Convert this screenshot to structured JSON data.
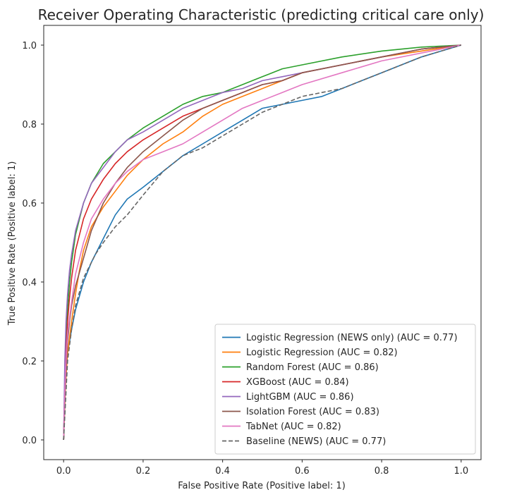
{
  "chart_data": {
    "type": "line",
    "title": "Receiver Operating Characteristic (predicting critical care only)",
    "xlabel": "False Positive Rate (Positive label: 1)",
    "ylabel": "True Positive Rate (Positive label: 1)",
    "xlim": [
      -0.05,
      1.05
    ],
    "ylim": [
      -0.05,
      1.05
    ],
    "xticks": [
      "0.0",
      "0.2",
      "0.4",
      "0.6",
      "0.8",
      "1.0"
    ],
    "yticks": [
      "0.0",
      "0.2",
      "0.4",
      "0.6",
      "0.8",
      "1.0"
    ],
    "grid": false,
    "legend_position": "lower-right",
    "series": [
      {
        "name": "Logistic Regression (NEWS only) (AUC = 0.77)",
        "color": "#1f77b4",
        "dash": "solid",
        "points": [
          [
            0,
            0
          ],
          [
            0.005,
            0.15
          ],
          [
            0.01,
            0.22
          ],
          [
            0.02,
            0.28
          ],
          [
            0.03,
            0.33
          ],
          [
            0.05,
            0.4
          ],
          [
            0.07,
            0.45
          ],
          [
            0.1,
            0.51
          ],
          [
            0.13,
            0.57
          ],
          [
            0.16,
            0.61
          ],
          [
            0.2,
            0.64
          ],
          [
            0.25,
            0.68
          ],
          [
            0.3,
            0.72
          ],
          [
            0.35,
            0.75
          ],
          [
            0.4,
            0.78
          ],
          [
            0.45,
            0.81
          ],
          [
            0.5,
            0.84
          ],
          [
            0.55,
            0.85
          ],
          [
            0.6,
            0.86
          ],
          [
            0.65,
            0.87
          ],
          [
            0.7,
            0.89
          ],
          [
            0.75,
            0.91
          ],
          [
            0.8,
            0.93
          ],
          [
            0.85,
            0.95
          ],
          [
            0.9,
            0.97
          ],
          [
            0.95,
            0.985
          ],
          [
            1,
            1
          ]
        ]
      },
      {
        "name": "Logistic Regression (AUC = 0.82)",
        "color": "#ff7f0e",
        "dash": "solid",
        "points": [
          [
            0,
            0
          ],
          [
            0.005,
            0.14
          ],
          [
            0.01,
            0.22
          ],
          [
            0.02,
            0.3
          ],
          [
            0.03,
            0.37
          ],
          [
            0.04,
            0.43
          ],
          [
            0.05,
            0.48
          ],
          [
            0.07,
            0.54
          ],
          [
            0.1,
            0.59
          ],
          [
            0.13,
            0.63
          ],
          [
            0.16,
            0.67
          ],
          [
            0.2,
            0.71
          ],
          [
            0.25,
            0.75
          ],
          [
            0.3,
            0.78
          ],
          [
            0.35,
            0.82
          ],
          [
            0.4,
            0.85
          ],
          [
            0.45,
            0.87
          ],
          [
            0.5,
            0.89
          ],
          [
            0.55,
            0.91
          ],
          [
            0.6,
            0.93
          ],
          [
            0.7,
            0.95
          ],
          [
            0.8,
            0.97
          ],
          [
            0.9,
            0.985
          ],
          [
            1,
            1
          ]
        ]
      },
      {
        "name": "Random Forest (AUC = 0.86)",
        "color": "#2ca02c",
        "dash": "solid",
        "points": [
          [
            0,
            0
          ],
          [
            0.003,
            0.15
          ],
          [
            0.006,
            0.25
          ],
          [
            0.01,
            0.33
          ],
          [
            0.015,
            0.4
          ],
          [
            0.02,
            0.45
          ],
          [
            0.03,
            0.52
          ],
          [
            0.05,
            0.6
          ],
          [
            0.07,
            0.65
          ],
          [
            0.1,
            0.7
          ],
          [
            0.13,
            0.73
          ],
          [
            0.16,
            0.76
          ],
          [
            0.2,
            0.79
          ],
          [
            0.25,
            0.82
          ],
          [
            0.3,
            0.85
          ],
          [
            0.35,
            0.87
          ],
          [
            0.4,
            0.88
          ],
          [
            0.45,
            0.9
          ],
          [
            0.5,
            0.92
          ],
          [
            0.55,
            0.94
          ],
          [
            0.6,
            0.95
          ],
          [
            0.7,
            0.97
          ],
          [
            0.8,
            0.985
          ],
          [
            0.9,
            0.995
          ],
          [
            1,
            1
          ]
        ]
      },
      {
        "name": "XGBoost (AUC = 0.84)",
        "color": "#d62728",
        "dash": "solid",
        "points": [
          [
            0,
            0
          ],
          [
            0.003,
            0.13
          ],
          [
            0.006,
            0.22
          ],
          [
            0.01,
            0.3
          ],
          [
            0.015,
            0.36
          ],
          [
            0.02,
            0.41
          ],
          [
            0.03,
            0.48
          ],
          [
            0.05,
            0.56
          ],
          [
            0.07,
            0.61
          ],
          [
            0.1,
            0.66
          ],
          [
            0.13,
            0.7
          ],
          [
            0.16,
            0.73
          ],
          [
            0.2,
            0.76
          ],
          [
            0.25,
            0.79
          ],
          [
            0.3,
            0.82
          ],
          [
            0.35,
            0.84
          ],
          [
            0.4,
            0.86
          ],
          [
            0.45,
            0.88
          ],
          [
            0.5,
            0.9
          ],
          [
            0.55,
            0.91
          ],
          [
            0.6,
            0.93
          ],
          [
            0.7,
            0.95
          ],
          [
            0.8,
            0.97
          ],
          [
            0.9,
            0.99
          ],
          [
            1,
            1
          ]
        ]
      },
      {
        "name": "LightGBM (AUC = 0.86)",
        "color": "#9467bd",
        "dash": "solid",
        "points": [
          [
            0,
            0
          ],
          [
            0.003,
            0.2
          ],
          [
            0.006,
            0.3
          ],
          [
            0.01,
            0.37
          ],
          [
            0.015,
            0.43
          ],
          [
            0.02,
            0.47
          ],
          [
            0.03,
            0.53
          ],
          [
            0.05,
            0.6
          ],
          [
            0.07,
            0.65
          ],
          [
            0.1,
            0.69
          ],
          [
            0.13,
            0.73
          ],
          [
            0.16,
            0.76
          ],
          [
            0.2,
            0.78
          ],
          [
            0.25,
            0.81
          ],
          [
            0.3,
            0.84
          ],
          [
            0.35,
            0.86
          ],
          [
            0.4,
            0.88
          ],
          [
            0.45,
            0.89
          ],
          [
            0.5,
            0.91
          ],
          [
            0.55,
            0.92
          ],
          [
            0.6,
            0.93
          ],
          [
            0.7,
            0.95
          ],
          [
            0.8,
            0.97
          ],
          [
            0.9,
            0.99
          ],
          [
            1,
            1
          ]
        ]
      },
      {
        "name": "Isolation Forest (AUC = 0.83)",
        "color": "#8c564b",
        "dash": "solid",
        "points": [
          [
            0,
            0
          ],
          [
            0.003,
            0.1
          ],
          [
            0.006,
            0.18
          ],
          [
            0.01,
            0.25
          ],
          [
            0.015,
            0.3
          ],
          [
            0.02,
            0.34
          ],
          [
            0.03,
            0.39
          ],
          [
            0.05,
            0.46
          ],
          [
            0.07,
            0.53
          ],
          [
            0.1,
            0.6
          ],
          [
            0.13,
            0.65
          ],
          [
            0.16,
            0.69
          ],
          [
            0.2,
            0.73
          ],
          [
            0.25,
            0.77
          ],
          [
            0.3,
            0.81
          ],
          [
            0.35,
            0.84
          ],
          [
            0.4,
            0.86
          ],
          [
            0.45,
            0.88
          ],
          [
            0.5,
            0.9
          ],
          [
            0.55,
            0.91
          ],
          [
            0.6,
            0.93
          ],
          [
            0.7,
            0.95
          ],
          [
            0.8,
            0.97
          ],
          [
            0.9,
            0.99
          ],
          [
            1,
            1
          ]
        ]
      },
      {
        "name": "TabNet (AUC = 0.82)",
        "color": "#e377c2",
        "dash": "solid",
        "points": [
          [
            0,
            0
          ],
          [
            0.003,
            0.12
          ],
          [
            0.006,
            0.2
          ],
          [
            0.01,
            0.27
          ],
          [
            0.02,
            0.35
          ],
          [
            0.03,
            0.42
          ],
          [
            0.05,
            0.5
          ],
          [
            0.07,
            0.56
          ],
          [
            0.1,
            0.61
          ],
          [
            0.13,
            0.65
          ],
          [
            0.16,
            0.68
          ],
          [
            0.2,
            0.71
          ],
          [
            0.25,
            0.73
          ],
          [
            0.3,
            0.75
          ],
          [
            0.35,
            0.78
          ],
          [
            0.4,
            0.81
          ],
          [
            0.45,
            0.84
          ],
          [
            0.5,
            0.86
          ],
          [
            0.55,
            0.88
          ],
          [
            0.6,
            0.9
          ],
          [
            0.7,
            0.93
          ],
          [
            0.8,
            0.96
          ],
          [
            0.9,
            0.98
          ],
          [
            1,
            1
          ]
        ]
      },
      {
        "name": "Baseline (NEWS) (AUC = 0.77)",
        "color": "#666666",
        "dash": "dashed",
        "points": [
          [
            0,
            0
          ],
          [
            0.01,
            0.2
          ],
          [
            0.02,
            0.28
          ],
          [
            0.03,
            0.34
          ],
          [
            0.05,
            0.41
          ],
          [
            0.08,
            0.47
          ],
          [
            0.1,
            0.5
          ],
          [
            0.13,
            0.54
          ],
          [
            0.16,
            0.57
          ],
          [
            0.2,
            0.62
          ],
          [
            0.25,
            0.68
          ],
          [
            0.3,
            0.72
          ],
          [
            0.35,
            0.74
          ],
          [
            0.4,
            0.77
          ],
          [
            0.45,
            0.8
          ],
          [
            0.5,
            0.83
          ],
          [
            0.55,
            0.85
          ],
          [
            0.6,
            0.87
          ],
          [
            0.65,
            0.88
          ],
          [
            0.7,
            0.89
          ],
          [
            0.75,
            0.91
          ],
          [
            0.8,
            0.93
          ],
          [
            0.85,
            0.95
          ],
          [
            0.9,
            0.97
          ],
          [
            0.95,
            0.985
          ],
          [
            1,
            1
          ]
        ]
      }
    ]
  }
}
